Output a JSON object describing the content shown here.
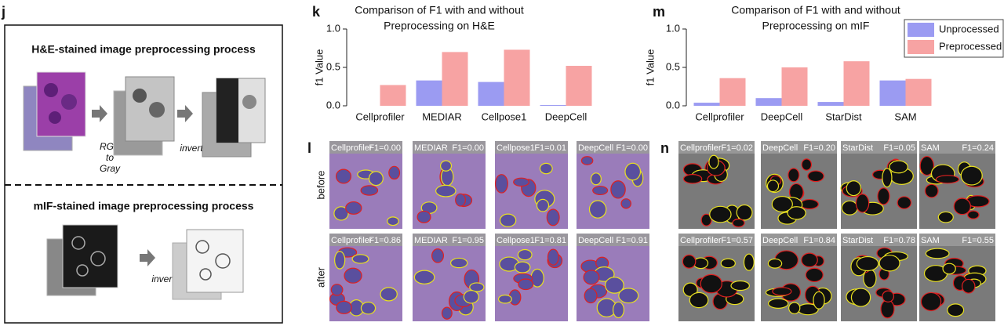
{
  "panel_labels": [
    "j",
    "k",
    "l",
    "m",
    "n"
  ],
  "diagram": {
    "he_title": "H&E-stained image preprocessing process",
    "he_step1": [
      "RGB",
      "to",
      "Gray"
    ],
    "he_step2": "invert",
    "mif_title": "mIF-stained image preprocessing process",
    "mif_step": "invert"
  },
  "chart_data": [
    {
      "type": "bar",
      "title": [
        "Comparison of F1 with and without",
        "Preprocessing on H&E"
      ],
      "ylabel": "f1 Value",
      "categories": [
        "Cellprofiler",
        "MEDIAR",
        "Cellpose1",
        "DeepCell"
      ],
      "series": [
        {
          "name": "Unprocessed",
          "color": "#9b9bf2",
          "values": [
            0,
            0.33,
            0.31,
            0.01
          ]
        },
        {
          "name": "Preprocessed",
          "color": "#f7a3a3",
          "values": [
            0.27,
            0.7,
            0.73,
            0.52
          ]
        }
      ],
      "ylim": [
        0,
        1
      ],
      "yticks": [
        {
          "value": 0,
          "label": "0.0"
        },
        {
          "value": 0.5,
          "label": "0.5"
        },
        {
          "value": 1,
          "label": "1.0"
        }
      ]
    },
    {
      "type": "bar",
      "title": [
        "Comparison of F1 with and without",
        "Preprocessing on mIF"
      ],
      "ylabel": "f1 Value",
      "categories": [
        "Cellprofiler",
        "DeepCell",
        "StarDist",
        "SAM"
      ],
      "series": [
        {
          "name": "Unprocessed",
          "color": "#9b9bf2",
          "values": [
            0.04,
            0.1,
            0.05,
            0.33
          ]
        },
        {
          "name": "Preprocessed",
          "color": "#f7a3a3",
          "values": [
            0.36,
            0.5,
            0.58,
            0.35
          ]
        }
      ],
      "ylim": [
        0,
        1
      ],
      "yticks": [
        {
          "value": 0,
          "label": "0.0"
        },
        {
          "value": 0.5,
          "label": "0.5"
        },
        {
          "value": 1,
          "label": "1.0"
        }
      ],
      "legend": "upper right"
    }
  ],
  "image_grids": [
    {
      "rows": [
        "before",
        "after"
      ],
      "tiles": [
        [
          {
            "method": "Cellprofiler",
            "score": "F1=0.00"
          },
          {
            "method": "MEDIAR",
            "score": "F1=0.00"
          },
          {
            "method": "Cellpose1",
            "score": "F1=0.01"
          },
          {
            "method": "DeepCell",
            "score": "F1=0.00"
          }
        ],
        [
          {
            "method": "Cellprofiler",
            "score": "F1=0.86"
          },
          {
            "method": "MEDIAR",
            "score": "F1=0.95"
          },
          {
            "method": "Cellpose1",
            "score": "F1=0.81"
          },
          {
            "method": "DeepCell",
            "score": "F1=0.91"
          }
        ]
      ]
    },
    {
      "rows": [],
      "tiles": [
        [
          {
            "method": "Cellprofiler",
            "score": "F1=0.02"
          },
          {
            "method": "DeepCell",
            "score": "F1=0.20"
          },
          {
            "method": "StarDist",
            "score": "F1=0.05"
          },
          {
            "method": "SAM",
            "score": "F1=0.24"
          }
        ],
        [
          {
            "method": "Cellprofiler",
            "score": "F1=0.57"
          },
          {
            "method": "DeepCell",
            "score": "F1=0.84"
          },
          {
            "method": "StarDist",
            "score": "F1=0.78"
          },
          {
            "method": "SAM",
            "score": "F1=0.55"
          }
        ]
      ]
    }
  ]
}
